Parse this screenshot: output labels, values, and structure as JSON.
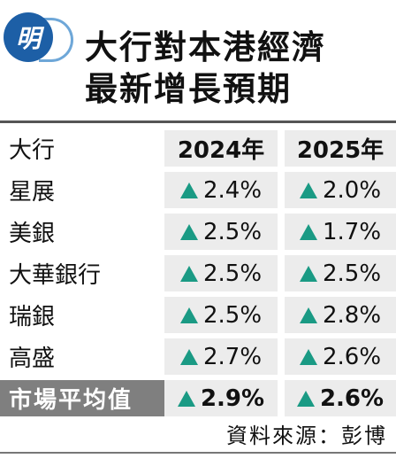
{
  "header": {
    "logo_char": "明",
    "title_line1": "大行對本港經濟",
    "title_line2": "最新增長預期"
  },
  "colors": {
    "up_arrow": "#1a9a84",
    "cell_bg": "#ececec",
    "avg_label_bg": "#7f7f7f",
    "logo_blue": "#1d5fa6"
  },
  "chart_data": {
    "type": "table",
    "title": "大行對本港經濟最新增長預期",
    "columns": [
      "大行",
      "2024年",
      "2025年"
    ],
    "rows": [
      {
        "bank": "星展",
        "y2024": "2.4%",
        "y2025": "2.0%"
      },
      {
        "bank": "美銀",
        "y2024": "2.5%",
        "y2025": "1.7%"
      },
      {
        "bank": "大華銀行",
        "y2024": "2.5%",
        "y2025": "2.5%"
      },
      {
        "bank": "瑞銀",
        "y2024": "2.5%",
        "y2025": "2.8%"
      },
      {
        "bank": "高盛",
        "y2024": "2.7%",
        "y2025": "2.6%"
      },
      {
        "bank": "市場平均值",
        "y2024": "2.9%",
        "y2025": "2.6%"
      }
    ],
    "source": "資料來源：彭博"
  }
}
